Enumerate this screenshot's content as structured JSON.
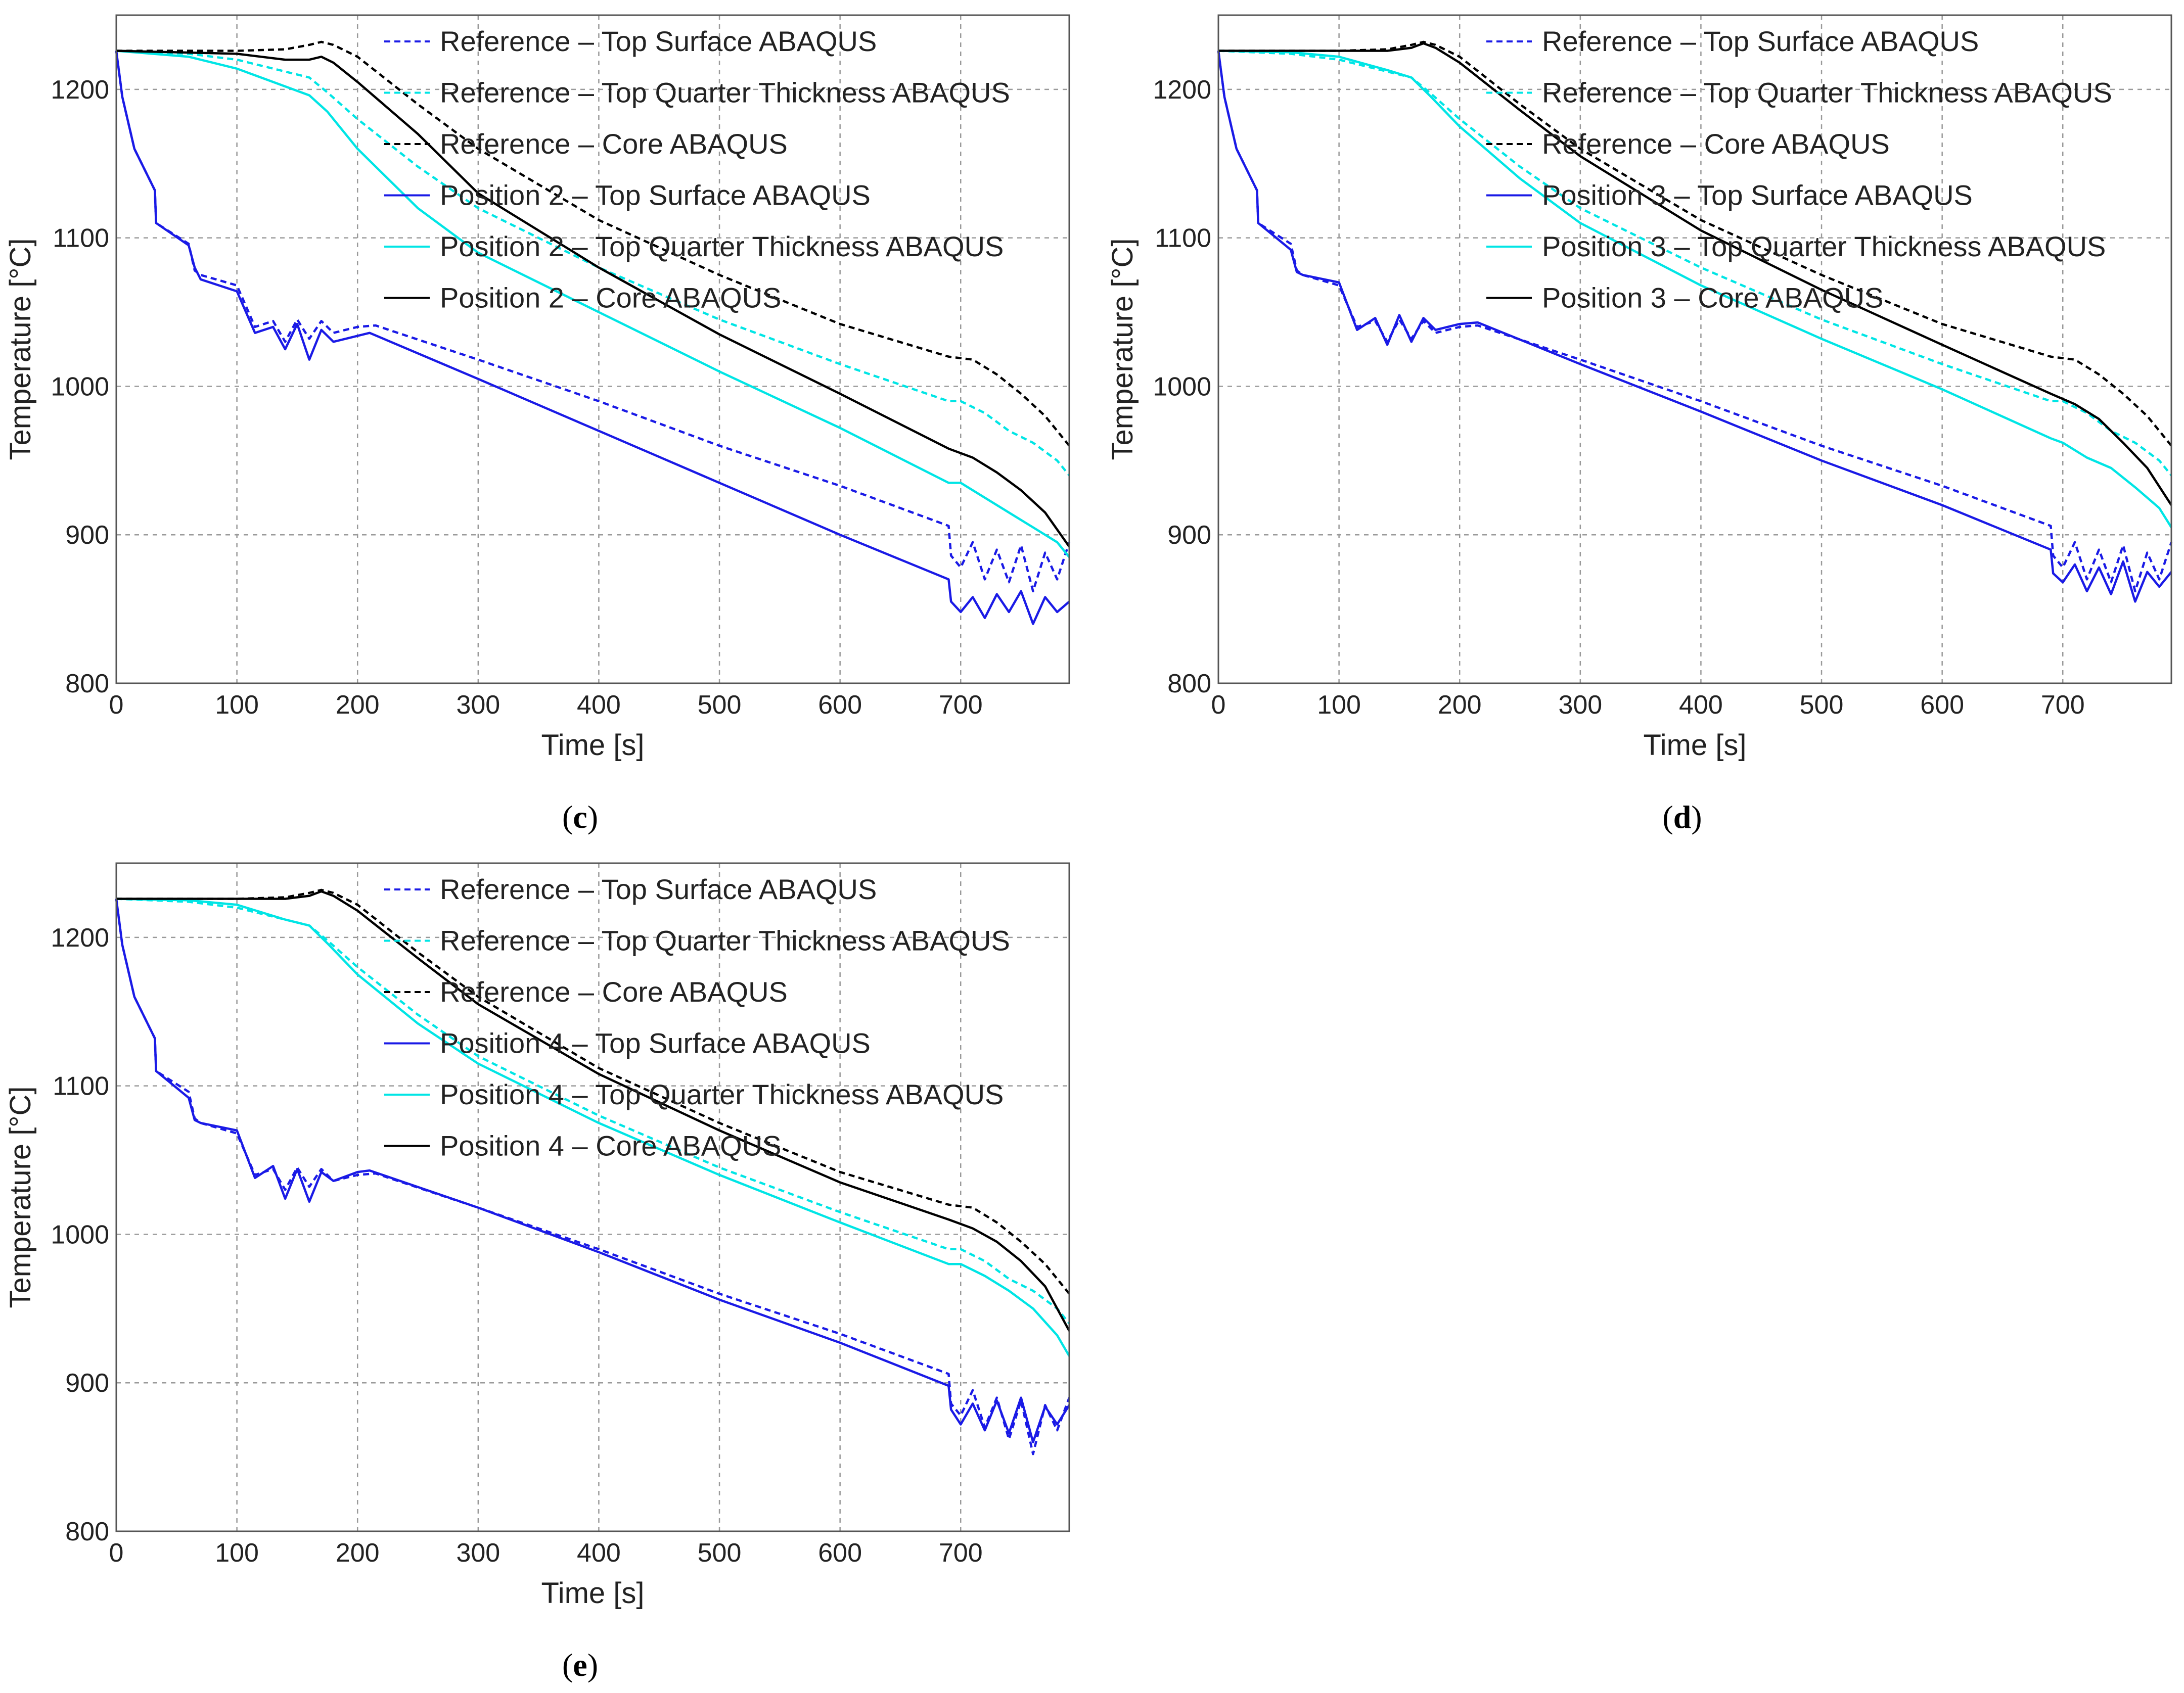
{
  "figure": {
    "legend_location": "top-right",
    "colors": {
      "surface": "#1a1ae6",
      "quarter": "#00e5e5",
      "core": "#000000",
      "grid": "#9a9a9a"
    }
  },
  "chart_data": [
    {
      "type": "line",
      "caption_letter": "c",
      "title": "",
      "xlabel": "Time [s]",
      "ylabel": "Temperature [°C]",
      "xlim": [
        0,
        790
      ],
      "ylim": [
        800,
        1250
      ],
      "xticks": [
        0,
        100,
        200,
        300,
        400,
        500,
        600,
        700
      ],
      "yticks": [
        800,
        900,
        1000,
        1100,
        1200
      ],
      "grid": true,
      "legend_location": "top-right",
      "series": [
        {
          "name": "Reference – Top Surface ABAQUS",
          "color": "#1a1ae6",
          "style": "dashed",
          "x": [
            0,
            5,
            15,
            32,
            33,
            60,
            65,
            70,
            100,
            115,
            130,
            140,
            150,
            160,
            170,
            180,
            200,
            215,
            300,
            400,
            500,
            600,
            690,
            692,
            700,
            710,
            720,
            730,
            740,
            750,
            760,
            770,
            780,
            790
          ],
          "y": [
            1226,
            1195,
            1160,
            1132,
            1110,
            1096,
            1078,
            1075,
            1068,
            1040,
            1044,
            1030,
            1045,
            1032,
            1044,
            1036,
            1040,
            1041,
            1018,
            990,
            960,
            933,
            906,
            886,
            878,
            895,
            870,
            890,
            868,
            893,
            862,
            888,
            870,
            895
          ]
        },
        {
          "name": "Reference – Top Quarter Thickness ABAQUS",
          "color": "#00e5e5",
          "style": "dashed",
          "x": [
            0,
            60,
            100,
            140,
            160,
            175,
            200,
            250,
            300,
            400,
            500,
            600,
            690,
            700,
            720,
            740,
            760,
            780,
            790
          ],
          "y": [
            1226,
            1224,
            1220,
            1212,
            1208,
            1198,
            1180,
            1148,
            1120,
            1080,
            1045,
            1015,
            990,
            990,
            982,
            970,
            962,
            950,
            940
          ]
        },
        {
          "name": "Reference – Core ABAQUS",
          "color": "#000000",
          "style": "dashed",
          "x": [
            0,
            100,
            140,
            160,
            170,
            180,
            200,
            250,
            300,
            400,
            500,
            600,
            690,
            710,
            730,
            750,
            770,
            790
          ],
          "y": [
            1226,
            1226,
            1227,
            1230,
            1232,
            1230,
            1222,
            1190,
            1160,
            1112,
            1075,
            1042,
            1020,
            1018,
            1008,
            995,
            980,
            960
          ]
        },
        {
          "name": "Position 2 – Top Surface ABAQUS",
          "color": "#1a1ae6",
          "style": "solid",
          "x": [
            0,
            5,
            15,
            32,
            33,
            60,
            65,
            70,
            100,
            115,
            130,
            140,
            150,
            160,
            170,
            180,
            200,
            210,
            300,
            400,
            500,
            600,
            690,
            692,
            700,
            710,
            720,
            730,
            740,
            750,
            760,
            770,
            780,
            790
          ],
          "y": [
            1226,
            1195,
            1160,
            1132,
            1110,
            1095,
            1080,
            1072,
            1064,
            1036,
            1040,
            1025,
            1042,
            1018,
            1038,
            1030,
            1034,
            1036,
            1005,
            970,
            935,
            900,
            870,
            855,
            848,
            858,
            844,
            860,
            848,
            862,
            840,
            858,
            848,
            855
          ]
        },
        {
          "name": "Position 2 – Top Quarter Thickness ABAQUS",
          "color": "#00e5e5",
          "style": "solid",
          "x": [
            0,
            60,
            100,
            140,
            160,
            175,
            200,
            250,
            300,
            400,
            500,
            600,
            690,
            700,
            720,
            740,
            760,
            780,
            790
          ],
          "y": [
            1226,
            1222,
            1214,
            1202,
            1196,
            1185,
            1160,
            1120,
            1090,
            1050,
            1010,
            972,
            935,
            935,
            925,
            915,
            905,
            895,
            885
          ]
        },
        {
          "name": "Position 2 – Core ABAQUS",
          "color": "#000000",
          "style": "solid",
          "x": [
            0,
            100,
            140,
            160,
            170,
            180,
            200,
            250,
            300,
            400,
            500,
            600,
            690,
            710,
            730,
            750,
            770,
            790
          ],
          "y": [
            1226,
            1224,
            1220,
            1220,
            1222,
            1218,
            1205,
            1170,
            1130,
            1080,
            1035,
            995,
            958,
            952,
            942,
            930,
            915,
            892
          ]
        }
      ]
    },
    {
      "type": "line",
      "caption_letter": "d",
      "title": "",
      "xlabel": "Time [s]",
      "ylabel": "Temperature [°C]",
      "xlim": [
        0,
        790
      ],
      "ylim": [
        800,
        1250
      ],
      "xticks": [
        0,
        100,
        200,
        300,
        400,
        500,
        600,
        700
      ],
      "yticks": [
        800,
        900,
        1000,
        1100,
        1200
      ],
      "grid": true,
      "legend_location": "top-right",
      "series": [
        {
          "name": "Reference – Top Surface ABAQUS",
          "color": "#1a1ae6",
          "style": "dashed",
          "x": [
            0,
            5,
            15,
            32,
            33,
            60,
            65,
            70,
            100,
            115,
            130,
            140,
            150,
            160,
            170,
            180,
            200,
            215,
            300,
            400,
            500,
            600,
            690,
            692,
            700,
            710,
            720,
            730,
            740,
            750,
            760,
            770,
            780,
            790
          ],
          "y": [
            1226,
            1195,
            1160,
            1132,
            1110,
            1096,
            1078,
            1075,
            1068,
            1040,
            1044,
            1030,
            1045,
            1032,
            1044,
            1036,
            1040,
            1041,
            1018,
            990,
            960,
            933,
            906,
            886,
            878,
            895,
            870,
            890,
            868,
            893,
            862,
            888,
            870,
            895
          ]
        },
        {
          "name": "Reference – Top Quarter Thickness ABAQUS",
          "color": "#00e5e5",
          "style": "dashed",
          "x": [
            0,
            60,
            100,
            140,
            160,
            175,
            200,
            250,
            300,
            400,
            500,
            600,
            690,
            700,
            720,
            740,
            760,
            780,
            790
          ],
          "y": [
            1226,
            1224,
            1220,
            1212,
            1208,
            1198,
            1180,
            1148,
            1120,
            1080,
            1045,
            1015,
            990,
            990,
            982,
            970,
            962,
            950,
            940
          ]
        },
        {
          "name": "Reference – Core ABAQUS",
          "color": "#000000",
          "style": "dashed",
          "x": [
            0,
            100,
            140,
            160,
            170,
            180,
            200,
            250,
            300,
            400,
            500,
            600,
            690,
            710,
            730,
            750,
            770,
            790
          ],
          "y": [
            1226,
            1226,
            1227,
            1230,
            1232,
            1230,
            1222,
            1190,
            1160,
            1112,
            1075,
            1042,
            1020,
            1018,
            1008,
            995,
            980,
            960
          ]
        },
        {
          "name": "Position 3 – Top Surface ABAQUS",
          "color": "#1a1ae6",
          "style": "solid",
          "x": [
            0,
            5,
            15,
            32,
            33,
            60,
            65,
            70,
            100,
            115,
            130,
            140,
            150,
            160,
            170,
            180,
            200,
            215,
            300,
            400,
            500,
            600,
            690,
            692,
            700,
            710,
            720,
            730,
            740,
            750,
            760,
            770,
            780,
            790
          ],
          "y": [
            1226,
            1195,
            1160,
            1132,
            1110,
            1092,
            1077,
            1075,
            1070,
            1038,
            1046,
            1028,
            1048,
            1030,
            1046,
            1038,
            1042,
            1043,
            1015,
            983,
            950,
            920,
            890,
            874,
            868,
            880,
            862,
            878,
            860,
            882,
            855,
            875,
            865,
            875
          ]
        },
        {
          "name": "Position 3 – Top Quarter Thickness ABAQUS",
          "color": "#00e5e5",
          "style": "solid",
          "x": [
            0,
            60,
            100,
            140,
            160,
            175,
            200,
            250,
            300,
            400,
            500,
            600,
            690,
            700,
            720,
            740,
            760,
            780,
            790
          ],
          "y": [
            1226,
            1225,
            1222,
            1213,
            1208,
            1196,
            1175,
            1140,
            1110,
            1068,
            1032,
            998,
            965,
            962,
            952,
            945,
            932,
            918,
            905
          ]
        },
        {
          "name": "Position 3 – Core ABAQUS",
          "color": "#000000",
          "style": "solid",
          "x": [
            0,
            100,
            140,
            160,
            170,
            180,
            200,
            250,
            300,
            400,
            500,
            600,
            690,
            710,
            730,
            750,
            770,
            790
          ],
          "y": [
            1226,
            1226,
            1226,
            1228,
            1231,
            1228,
            1218,
            1186,
            1155,
            1105,
            1065,
            1028,
            995,
            988,
            978,
            962,
            945,
            920
          ]
        }
      ]
    },
    {
      "type": "line",
      "caption_letter": "e",
      "title": "",
      "xlabel": "Time [s]",
      "ylabel": "Temperature [°C]",
      "xlim": [
        0,
        790
      ],
      "ylim": [
        800,
        1250
      ],
      "xticks": [
        0,
        100,
        200,
        300,
        400,
        500,
        600,
        700
      ],
      "yticks": [
        800,
        900,
        1000,
        1100,
        1200
      ],
      "grid": true,
      "legend_location": "top-right",
      "series": [
        {
          "name": "Reference – Top Surface ABAQUS",
          "color": "#1a1ae6",
          "style": "dashed",
          "x": [
            0,
            5,
            15,
            32,
            33,
            60,
            65,
            70,
            100,
            115,
            130,
            140,
            150,
            160,
            170,
            180,
            200,
            215,
            300,
            400,
            500,
            600,
            690,
            692,
            700,
            710,
            720,
            730,
            740,
            750,
            760,
            770,
            780,
            790
          ],
          "y": [
            1226,
            1195,
            1160,
            1132,
            1110,
            1096,
            1078,
            1075,
            1068,
            1040,
            1044,
            1030,
            1045,
            1032,
            1044,
            1036,
            1040,
            1041,
            1018,
            990,
            960,
            933,
            906,
            886,
            878,
            895,
            870,
            890,
            862,
            888,
            852,
            885,
            868,
            890
          ]
        },
        {
          "name": "Reference – Top Quarter Thickness ABAQUS",
          "color": "#00e5e5",
          "style": "dashed",
          "x": [
            0,
            60,
            100,
            140,
            160,
            175,
            200,
            250,
            300,
            400,
            500,
            600,
            690,
            700,
            720,
            740,
            760,
            780,
            790
          ],
          "y": [
            1226,
            1224,
            1220,
            1212,
            1208,
            1198,
            1180,
            1148,
            1120,
            1080,
            1045,
            1015,
            990,
            990,
            982,
            970,
            962,
            950,
            940
          ]
        },
        {
          "name": "Reference – Core ABAQUS",
          "color": "#000000",
          "style": "dashed",
          "x": [
            0,
            100,
            140,
            160,
            170,
            180,
            200,
            250,
            300,
            400,
            500,
            600,
            690,
            710,
            730,
            750,
            770,
            790
          ],
          "y": [
            1226,
            1226,
            1227,
            1230,
            1232,
            1230,
            1222,
            1190,
            1160,
            1112,
            1075,
            1042,
            1020,
            1018,
            1008,
            995,
            980,
            960
          ]
        },
        {
          "name": "Position 4 – Top Surface ABAQUS",
          "color": "#1a1ae6",
          "style": "solid",
          "x": [
            0,
            5,
            15,
            32,
            33,
            60,
            65,
            70,
            100,
            115,
            130,
            140,
            150,
            160,
            170,
            180,
            200,
            210,
            300,
            400,
            500,
            600,
            690,
            692,
            700,
            710,
            720,
            730,
            740,
            750,
            760,
            770,
            780,
            790
          ],
          "y": [
            1226,
            1195,
            1160,
            1132,
            1110,
            1092,
            1077,
            1075,
            1070,
            1038,
            1046,
            1024,
            1044,
            1022,
            1042,
            1036,
            1042,
            1043,
            1018,
            988,
            956,
            927,
            898,
            882,
            872,
            886,
            868,
            888,
            866,
            890,
            860,
            884,
            872,
            885
          ]
        },
        {
          "name": "Position 4 – Top Quarter Thickness ABAQUS",
          "color": "#00e5e5",
          "style": "solid",
          "x": [
            0,
            60,
            100,
            140,
            160,
            175,
            200,
            250,
            300,
            400,
            500,
            600,
            690,
            700,
            720,
            740,
            760,
            780,
            790
          ],
          "y": [
            1226,
            1225,
            1222,
            1212,
            1208,
            1196,
            1175,
            1142,
            1115,
            1075,
            1040,
            1008,
            980,
            980,
            972,
            962,
            950,
            932,
            918
          ]
        },
        {
          "name": "Position 4 – Core ABAQUS",
          "color": "#000000",
          "style": "solid",
          "x": [
            0,
            100,
            140,
            160,
            170,
            180,
            200,
            250,
            300,
            400,
            500,
            600,
            690,
            710,
            730,
            750,
            770,
            790
          ],
          "y": [
            1226,
            1226,
            1226,
            1228,
            1231,
            1228,
            1218,
            1186,
            1155,
            1108,
            1070,
            1035,
            1010,
            1004,
            995,
            982,
            965,
            935
          ]
        }
      ]
    }
  ]
}
